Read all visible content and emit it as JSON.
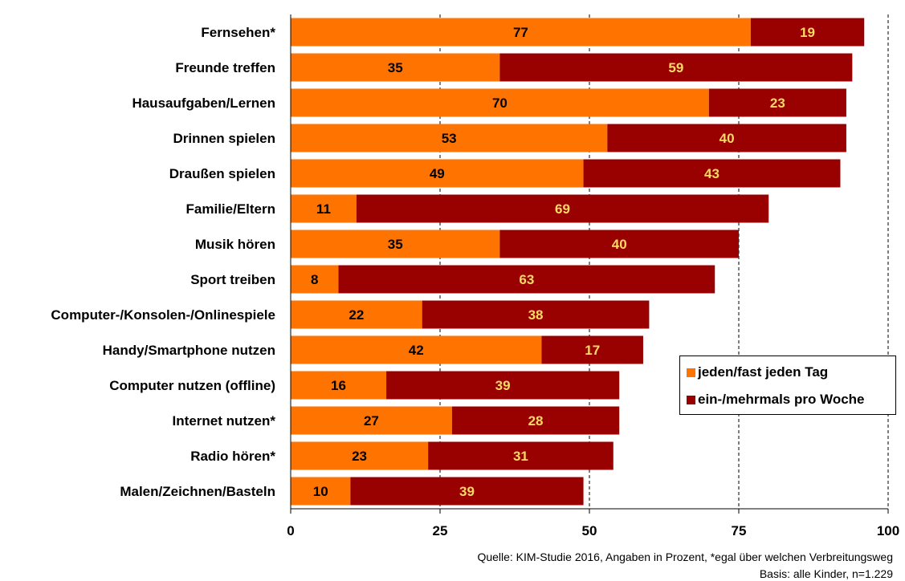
{
  "chart_data": {
    "type": "bar",
    "orientation": "horizontal",
    "stacked": true,
    "categories": [
      "Fernsehen*",
      "Freunde treffen",
      "Hausaufgaben/Lernen",
      "Drinnen spielen",
      "Draußen spielen",
      "Familie/Eltern",
      "Musik hören",
      "Sport treiben",
      "Computer-/Konsolen-/Onlinespiele",
      "Handy/Smartphone nutzen",
      "Computer nutzen (offline)",
      "Internet nutzen*",
      "Radio hören*",
      "Malen/Zeichnen/Basteln"
    ],
    "series": [
      {
        "name": "jeden/fast jeden Tag",
        "color": "#FF7300",
        "label_color": "#000000",
        "values": [
          77,
          35,
          70,
          53,
          49,
          11,
          35,
          8,
          22,
          42,
          16,
          27,
          23,
          10
        ]
      },
      {
        "name": "ein-/mehrmals pro Woche",
        "color": "#990000",
        "label_color": "#FFD966",
        "values": [
          19,
          59,
          23,
          40,
          43,
          69,
          40,
          63,
          38,
          17,
          39,
          28,
          31,
          39
        ]
      }
    ],
    "xlim": [
      0,
      100
    ],
    "xticks": [
      "0",
      "25",
      "50",
      "75",
      "100"
    ],
    "grid": "dashed vertical",
    "legend_position": "right"
  },
  "source": {
    "line1": "Quelle: KIM-Studie 2016, Angaben in Prozent, *egal über welchen Verbreitungsweg",
    "line2": "Basis: alle Kinder, n=1.229"
  }
}
